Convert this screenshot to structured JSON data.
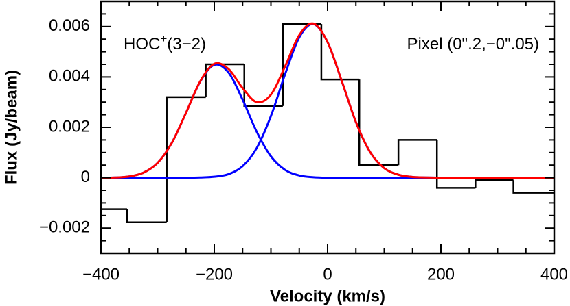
{
  "chart_data": {
    "type": "line",
    "xlabel": "Velocity (km/s)",
    "ylabel": "Flux (Jy/beam)",
    "annotation_left": [
      "HOC",
      "+",
      "(3−2)"
    ],
    "annotation_right": "Pixel (0\".2,−0\".05)",
    "xlim": [
      -400,
      400
    ],
    "ylim": [
      -0.003,
      0.007
    ],
    "xticks": [
      {
        "value": -400,
        "label": "−400"
      },
      {
        "value": -200,
        "label": "−200"
      },
      0,
      200,
      400
    ],
    "yticks": [
      {
        "value": -0.002,
        "label": "−0.002"
      },
      0,
      0.002,
      0.004,
      0.006
    ],
    "xminorticks": [
      -350,
      -300,
      -250,
      -150,
      -100,
      -50,
      50,
      100,
      150,
      250,
      300,
      350
    ],
    "yminorticks": [
      -0.0025,
      -0.0015,
      -0.001,
      -0.0005,
      0.0005,
      0.001,
      0.0015,
      0.0025,
      0.003,
      0.0035,
      0.0045,
      0.005,
      0.0055,
      0.0065
    ],
    "histogram": {
      "color": "#000000",
      "bins": [
        -400,
        -354,
        -284,
        -215,
        -147,
        -79,
        -11,
        56,
        125,
        193,
        261,
        328,
        400
      ],
      "values": [
        -0.00125,
        -0.00177,
        0.0032,
        0.0045,
        0.00285,
        0.0061,
        0.0039,
        0.0005,
        0.0015,
        -0.0004,
        -0.0001,
        -0.0006
      ]
    },
    "x": [
      -400,
      -375,
      -350,
      -325,
      -300,
      -275,
      -250,
      -225,
      -200,
      -175,
      -150,
      -125,
      -100,
      -75,
      -50,
      -25,
      0,
      25,
      50,
      75,
      100,
      125,
      150,
      175,
      200,
      225,
      250,
      275,
      300,
      325,
      350,
      375,
      400
    ],
    "series": [
      {
        "color": "#0000ff",
        "values": [
          0,
          1e-05,
          5e-05,
          0.0002,
          0.00059,
          0.00138,
          0.00257,
          0.00381,
          0.00448,
          0.00418,
          0.0031,
          0.00182,
          0.00085,
          0.00031,
          9e-05,
          2e-05,
          0,
          0,
          0,
          0,
          0,
          0,
          0,
          0,
          0,
          0,
          0,
          0,
          0,
          0,
          0,
          0,
          0
        ]
      },
      {
        "color": "#0000ff",
        "values": [
          0,
          0,
          0,
          0,
          0,
          0,
          0,
          1e-05,
          4e-05,
          0.00014,
          0.00046,
          0.00118,
          0.00245,
          0.00411,
          0.00557,
          0.0061,
          0.00538,
          0.00384,
          0.00221,
          0.00102,
          0.00038,
          0.00012,
          3e-05,
          1e-05,
          0,
          0,
          0,
          0,
          0,
          0,
          0,
          0,
          0
        ]
      },
      {
        "color": "#ff0000",
        "values": [
          0,
          1e-05,
          5e-05,
          0.0002,
          0.00059,
          0.00138,
          0.00257,
          0.00382,
          0.00452,
          0.00432,
          0.00356,
          0.003,
          0.0033,
          0.00442,
          0.00566,
          0.00612,
          0.00538,
          0.00384,
          0.00221,
          0.00102,
          0.00038,
          0.00012,
          3e-05,
          1e-05,
          0,
          0,
          0,
          0,
          0,
          0,
          0,
          0,
          0
        ]
      }
    ]
  }
}
